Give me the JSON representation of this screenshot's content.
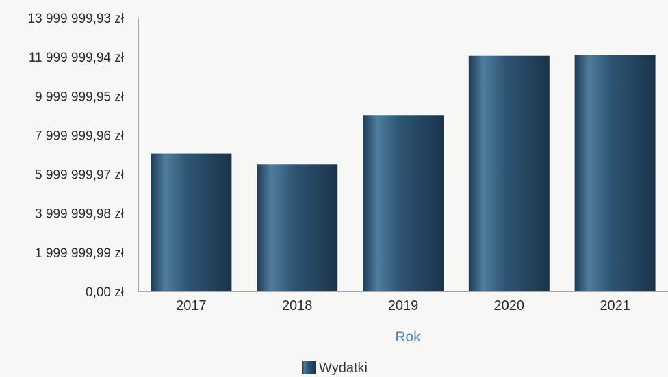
{
  "chart_data": {
    "type": "bar",
    "title": "",
    "xlabel": "Rok",
    "ylabel": "",
    "categories": [
      "2017",
      "2018",
      "2019",
      "2020",
      "2021"
    ],
    "series": [
      {
        "name": "Wydatki",
        "values": [
          7050000,
          6500000,
          9020000,
          12050000,
          12080000
        ]
      }
    ],
    "ylim": [
      0,
      13999999.93
    ],
    "y_tick_values": [
      0,
      1999999.99,
      3999999.98,
      5999999.97,
      7999999.96,
      9999999.95,
      11999999.94,
      13999999.93
    ],
    "y_tick_labels": [
      "0,00 zł",
      "1 999 999,99 zł",
      "3 999 999,98 zł",
      "5 999 999,97 zł",
      "7 999 999,96 zł",
      "9 999 999,95 zł",
      "11 999 999,94 zł",
      "13 999 999,93 zł"
    ],
    "grid": false,
    "legend_position": "bottom-center",
    "colors": {
      "bar": "#2d5170",
      "bar_highlight": "#5f8fb0",
      "axis_title": "#4a86c5",
      "axis": "#555555"
    }
  }
}
